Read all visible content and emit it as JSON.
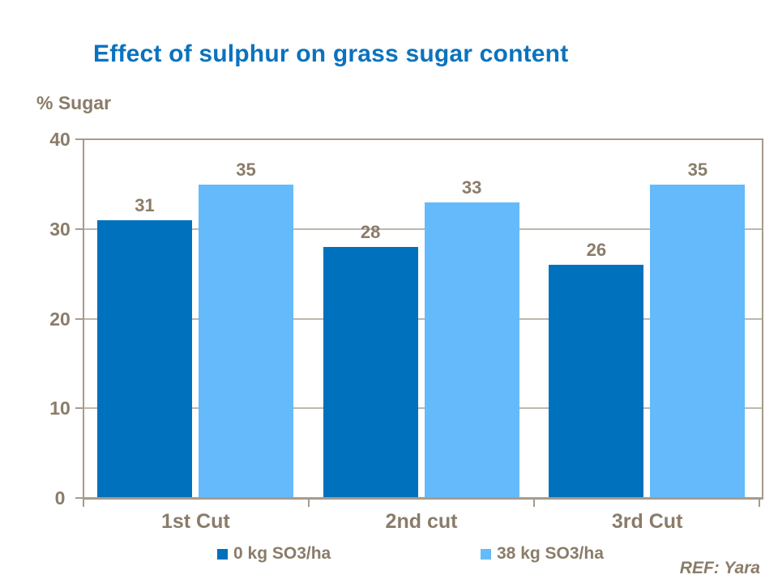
{
  "title": "Effect of sulphur on grass sugar content",
  "footer": {
    "ref": "REF: Yara"
  },
  "colors": {
    "title": "#0B73BD",
    "series_dark": "#0071BC",
    "series_light": "#64BAFA",
    "text": "#8A7C6A",
    "axis": "#A79B8D",
    "gridline": "#BFB7AB",
    "background": "#FFFFFF"
  },
  "chart_data": {
    "type": "bar",
    "title": "Effect of sulphur on grass sugar content",
    "ylabel": "% Sugar",
    "xlabel": "",
    "categories": [
      "1st Cut",
      "2nd cut",
      "3rd Cut"
    ],
    "series": [
      {
        "name": "0 kg SO3/ha",
        "color_key": "series_dark",
        "values": [
          31,
          28,
          26
        ]
      },
      {
        "name": "38 kg SO3/ha",
        "color_key": "series_light",
        "values": [
          35,
          33,
          35
        ]
      }
    ],
    "ylim": [
      0,
      40
    ],
    "yticks": [
      0,
      10,
      20,
      30,
      40
    ],
    "grid": true,
    "data_labels": true,
    "legend_position": "bottom"
  }
}
